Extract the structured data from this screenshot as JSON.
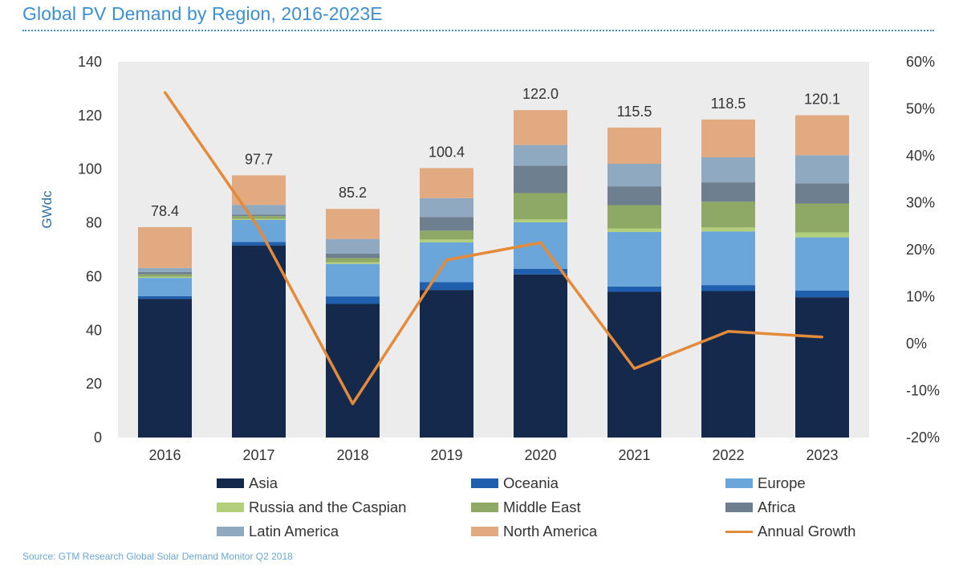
{
  "header": {
    "title": "Global PV Demand by Region, 2016-2023E",
    "source": "Source: GTM Research Global Solar Demand Monitor Q2 2018"
  },
  "chart_data": {
    "type": "bar",
    "stacked": true,
    "title": "Global PV Demand by Region, 2016-2023E",
    "xlabel": "",
    "ylabel": "GWdc",
    "y2label": "",
    "categories": [
      "2016",
      "2017",
      "2018",
      "2019",
      "2020",
      "2021",
      "2022",
      "2023"
    ],
    "ylim": [
      0,
      140
    ],
    "yticks": [
      "0",
      "20",
      "40",
      "60",
      "80",
      "100",
      "120",
      "140"
    ],
    "y2lim": [
      -20,
      60
    ],
    "y2ticks": [
      "-20%",
      "-10%",
      "0%",
      "10%",
      "20%",
      "30%",
      "40%",
      "50%",
      "60%"
    ],
    "totals": [
      "78.4",
      "97.7",
      "85.2",
      "100.4",
      "122.0",
      "115.5",
      "118.5",
      "120.1"
    ],
    "series": [
      {
        "name": "Asia",
        "color": "#14294b",
        "values": [
          51.7,
          71.6,
          49.8,
          55.0,
          60.8,
          54.3,
          54.6,
          52.3
        ]
      },
      {
        "name": "Oceania",
        "color": "#1f5fad",
        "values": [
          1.0,
          1.3,
          2.8,
          2.9,
          2.1,
          2.0,
          2.2,
          2.5
        ]
      },
      {
        "name": "Europe",
        "color": "#6aa6da",
        "values": [
          6.8,
          8.2,
          12.1,
          14.8,
          17.3,
          20.3,
          20.0,
          19.8
        ]
      },
      {
        "name": "Russia and the Caspian",
        "color": "#b2cf7c",
        "values": [
          0.4,
          0.4,
          0.6,
          1.1,
          1.1,
          1.3,
          1.5,
          1.8
        ]
      },
      {
        "name": "Middle East",
        "color": "#8ea865",
        "values": [
          0.9,
          1.0,
          1.6,
          3.3,
          9.8,
          8.7,
          9.6,
          10.8
        ]
      },
      {
        "name": "Africa",
        "color": "#6e7f8f",
        "values": [
          0.9,
          0.6,
          1.6,
          5.1,
          10.2,
          7.0,
          7.2,
          7.5
        ]
      },
      {
        "name": "Latin America",
        "color": "#8ea9c0",
        "values": [
          1.5,
          3.6,
          5.5,
          7.0,
          7.7,
          8.4,
          9.3,
          10.5
        ]
      },
      {
        "name": "North America",
        "color": "#e2aa80",
        "values": [
          15.2,
          11.0,
          11.2,
          11.2,
          13.0,
          13.5,
          14.1,
          14.9
        ]
      }
    ],
    "line_series": {
      "name": "Annual Growth",
      "color": "#e38b3a",
      "axis": "right",
      "unit": "%",
      "values": [
        53.5,
        24.6,
        -12.8,
        17.8,
        21.5,
        -5.3,
        2.6,
        1.4
      ]
    },
    "plot_background": "#ececec",
    "grid": false,
    "legend_position": "bottom"
  }
}
